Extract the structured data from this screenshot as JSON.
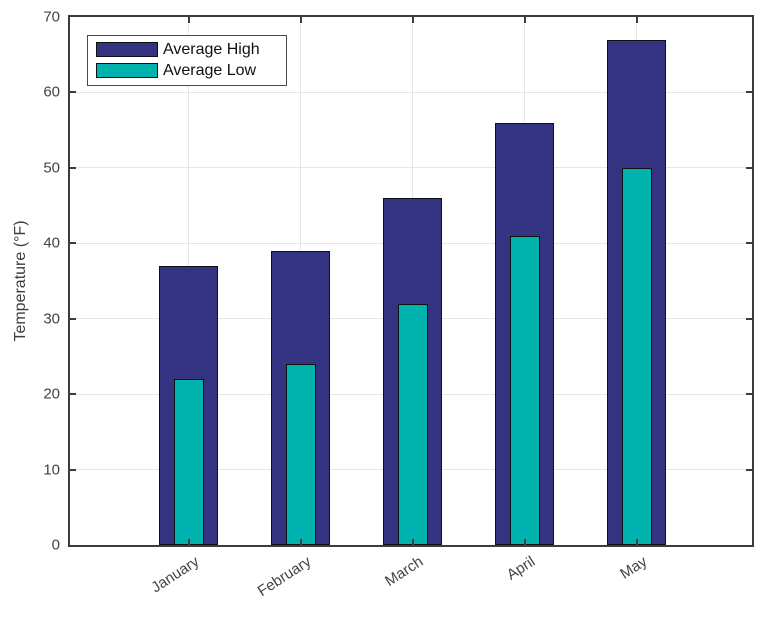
{
  "chart_data": {
    "type": "bar",
    "subtype": "overlaid",
    "title": "",
    "xlabel": "",
    "ylabel": "Temperature (°F)",
    "categories": [
      "January",
      "February",
      "March",
      "April",
      "May"
    ],
    "series": [
      {
        "name": "Average High",
        "values": [
          37,
          39,
          46,
          56,
          67
        ],
        "color": "#333381"
      },
      {
        "name": "Average Low",
        "values": [
          22,
          24,
          32,
          41,
          50
        ],
        "color": "#00b2ad"
      }
    ],
    "ylim": [
      0,
      70
    ],
    "ytick_step": 10,
    "yticks": [
      "0",
      "10",
      "20",
      "30",
      "40",
      "50",
      "60",
      "70"
    ],
    "grid": "both",
    "legend_position": "top-left",
    "xtick_rotation_deg": 33
  },
  "figure": {
    "background_color": "#ffffff",
    "axis_color": "#3c3c3c",
    "grid_color": "#e6e6e6",
    "bar_edge_color": "#101010",
    "tick_label_color": "#434343"
  }
}
